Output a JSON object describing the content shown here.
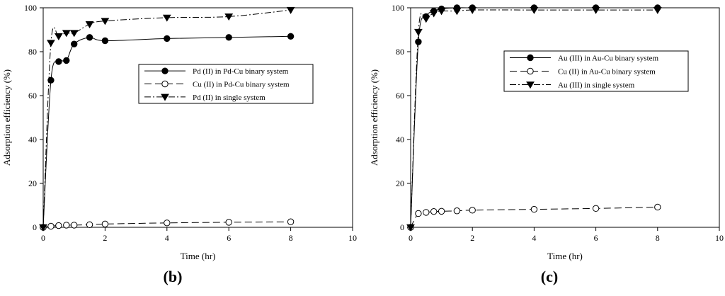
{
  "chart_data": [
    {
      "type": "line",
      "panel_label": "(b)",
      "xlabel": "Time (hr)",
      "ylabel": "Adsorption efficiency (%)",
      "xlim": [
        0,
        10
      ],
      "ylim": [
        0,
        100
      ],
      "xticks": [
        "0",
        "2",
        "4",
        "6",
        "8",
        "10"
      ],
      "yticks": [
        "0",
        "20",
        "40",
        "60",
        "80",
        "100"
      ],
      "grid": false,
      "legend_position": "center-right",
      "series": [
        {
          "name": "Pd (II) in Pd-Cu binary system",
          "marker": "filled-circle",
          "line": "solid",
          "x": [
            0,
            0.25,
            0.5,
            0.75,
            1,
            1.5,
            2,
            4,
            6,
            8
          ],
          "y": [
            0,
            67,
            75.5,
            76,
            83.5,
            86.5,
            85,
            86,
            86.5,
            87
          ]
        },
        {
          "name": "Cu (II) in Pd-Cu binary system",
          "marker": "open-circle",
          "line": "long-dash",
          "x": [
            0,
            0.25,
            0.5,
            0.75,
            1,
            1.5,
            2,
            4,
            6,
            8
          ],
          "y": [
            0,
            0.5,
            0.8,
            1,
            1,
            1.2,
            1.5,
            2,
            2.3,
            2.5
          ]
        },
        {
          "name": "Pd (II) in single system",
          "marker": "filled-triangle-down",
          "line": "dash-dot",
          "x": [
            0,
            0.25,
            0.5,
            0.75,
            1,
            1.5,
            2,
            4,
            6,
            8
          ],
          "y": [
            0,
            84,
            87,
            88.5,
            88.5,
            92.5,
            94,
            95.5,
            96,
            99
          ]
        }
      ]
    },
    {
      "type": "line",
      "panel_label": "(c)",
      "xlabel": "Time (hr)",
      "ylabel": "Adsorption efficiency (%)",
      "xlim": [
        0,
        10
      ],
      "ylim": [
        0,
        100
      ],
      "xticks": [
        "0",
        "2",
        "4",
        "6",
        "8",
        "10"
      ],
      "yticks": [
        "0",
        "20",
        "40",
        "60",
        "80",
        "100"
      ],
      "grid": false,
      "legend_position": "center-right",
      "series": [
        {
          "name": "Au (III) in Au-Cu binary system",
          "marker": "filled-circle",
          "line": "solid",
          "x": [
            0,
            0.25,
            0.5,
            0.75,
            1,
            1.5,
            2,
            4,
            6,
            8
          ],
          "y": [
            0,
            84.5,
            96,
            98.5,
            99.5,
            100,
            100,
            100,
            100,
            100
          ]
        },
        {
          "name": "Cu (II) in Au-Cu binary system",
          "marker": "open-circle",
          "line": "long-dash",
          "x": [
            0,
            0.25,
            0.5,
            0.75,
            1,
            1.5,
            2,
            4,
            6,
            8
          ],
          "y": [
            0,
            6.3,
            6.8,
            7.2,
            7.3,
            7.5,
            7.8,
            8.2,
            8.6,
            9.2
          ]
        },
        {
          "name": "Au (III) in single system",
          "marker": "filled-triangle-down",
          "line": "dash-dot",
          "x": [
            0,
            0.25,
            0.5,
            0.75,
            1,
            1.5,
            2,
            4,
            6,
            8
          ],
          "y": [
            0,
            89,
            95,
            97.5,
            98.5,
            98.5,
            99,
            99,
            99,
            99
          ]
        }
      ]
    }
  ]
}
